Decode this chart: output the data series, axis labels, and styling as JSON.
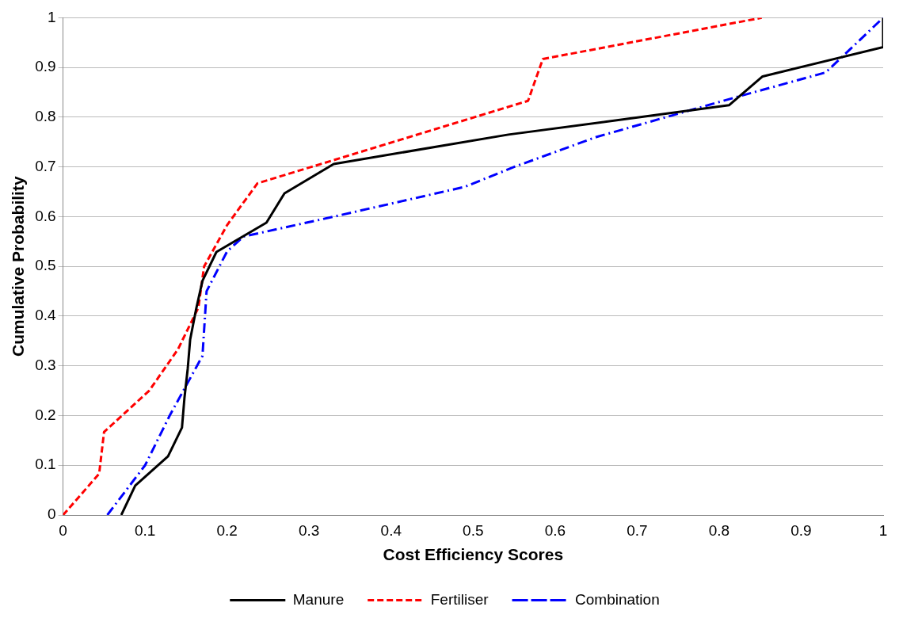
{
  "chart_data": {
    "type": "line",
    "xlabel": "Cost Efficiency Scores",
    "ylabel": "Cumulative Probability",
    "xlim": [
      0,
      1
    ],
    "ylim": [
      0,
      1
    ],
    "xticks": [
      0,
      0.1,
      0.2,
      0.3,
      0.4,
      0.5,
      0.6,
      0.7,
      0.8,
      0.9,
      1
    ],
    "yticks": [
      0,
      0.1,
      0.2,
      0.3,
      0.4,
      0.5,
      0.6,
      0.7,
      0.8,
      0.9,
      1
    ],
    "grid": "y",
    "legend": "bottom",
    "marker": "none",
    "series": [
      {
        "name": "Manure",
        "color": "#000000",
        "line_style": "solid",
        "x": [
          0.071,
          0.088,
          0.128,
          0.145,
          0.148,
          0.152,
          0.155,
          0.162,
          0.17,
          0.187,
          0.248,
          0.27,
          0.33,
          0.543,
          0.812,
          0.853,
          1,
          1
        ],
        "values": [
          0,
          0.059,
          0.118,
          0.176,
          0.235,
          0.294,
          0.353,
          0.412,
          0.471,
          0.529,
          0.588,
          0.647,
          0.706,
          0.765,
          0.824,
          0.882,
          0.941,
          1
        ]
      },
      {
        "name": "Fertiliser",
        "color": "#ff0000",
        "line_style": "dashed",
        "x": [
          0,
          0.044,
          0.05,
          0.105,
          0.14,
          0.165,
          0.172,
          0.2,
          0.237,
          0.567,
          0.585,
          0.852
        ],
        "values": [
          0,
          0.083,
          0.167,
          0.25,
          0.333,
          0.417,
          0.5,
          0.583,
          0.667,
          0.833,
          0.917,
          1
        ]
      },
      {
        "name": "Combination",
        "color": "#0000ff",
        "line_style": "dashdot",
        "x": [
          0.054,
          0.1,
          0.13,
          0.17,
          0.175,
          0.2,
          0.22,
          0.33,
          0.49,
          0.55,
          0.65,
          0.82,
          0.93,
          1
        ],
        "values": [
          0,
          0.1,
          0.2,
          0.32,
          0.45,
          0.53,
          0.56,
          0.6,
          0.66,
          0.7,
          0.76,
          0.84,
          0.89,
          1
        ]
      }
    ]
  }
}
